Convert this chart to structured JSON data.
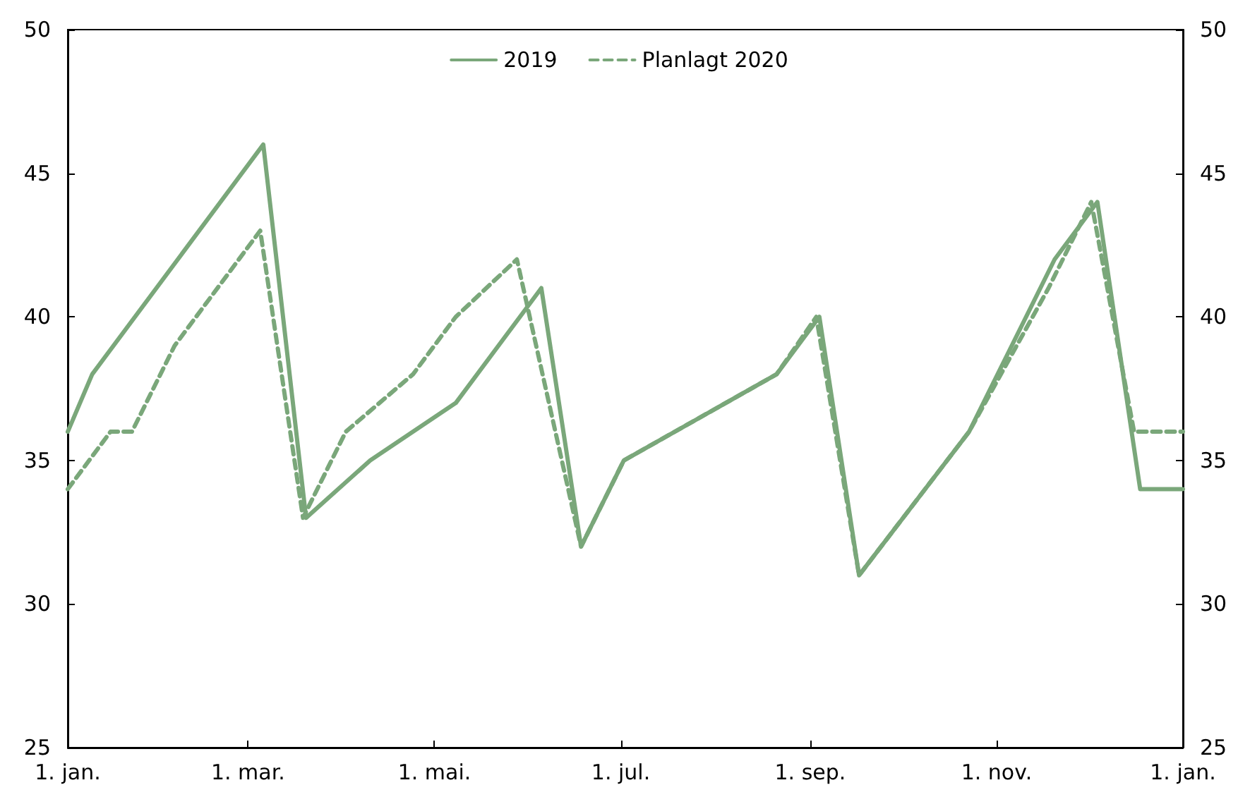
{
  "chart_data": {
    "type": "line",
    "xlim": [
      "2019-01-01",
      "2020-01-01"
    ],
    "xticks": [
      {
        "value": "2019-01-01",
        "label": "1. jan."
      },
      {
        "value": "2019-03-01",
        "label": "1. mar."
      },
      {
        "value": "2019-05-01",
        "label": "1. mai."
      },
      {
        "value": "2019-07-01",
        "label": "1. jul."
      },
      {
        "value": "2019-09-01",
        "label": "1. sep."
      },
      {
        "value": "2019-11-01",
        "label": "1. nov."
      },
      {
        "value": "2020-01-01",
        "label": "1. jan."
      }
    ],
    "ylim": [
      25,
      50
    ],
    "yticks": [
      25,
      30,
      35,
      40,
      45,
      50
    ],
    "y2lim": [
      25,
      50
    ],
    "y2ticks": [
      25,
      30,
      35,
      40,
      45,
      50
    ],
    "grid": false,
    "legend": "top",
    "marker": "none",
    "series": [
      {
        "name": "2019",
        "color": "#7aa77a",
        "line_style": "solid",
        "x": [
          "2019-01-01",
          "2019-01-09",
          "2019-03-06",
          "2019-03-20",
          "2019-04-10",
          "2019-05-08",
          "2019-06-05",
          "2019-06-18",
          "2019-07-02",
          "2019-08-21",
          "2019-09-04",
          "2019-09-17",
          "2019-10-23",
          "2019-11-20",
          "2019-12-04",
          "2019-12-18",
          "2020-01-01"
        ],
        "values": [
          36,
          38,
          46,
          33,
          35,
          37,
          41,
          32,
          35,
          38,
          40,
          31,
          36,
          42,
          44,
          34,
          34
        ]
      },
      {
        "name": "Planlagt 2020",
        "color": "#7aa77a",
        "line_style": "dashed",
        "x": [
          "2019-01-01",
          "2019-01-15",
          "2019-01-22",
          "2019-02-05",
          "2019-03-05",
          "2019-03-19",
          "2019-04-02",
          "2019-04-24",
          "2019-05-08",
          "2019-05-28",
          "2019-06-18",
          "2019-07-02",
          "2019-08-21",
          "2019-09-03",
          "2019-09-17",
          "2019-10-23",
          "2019-11-18",
          "2019-12-02",
          "2019-12-16",
          "2020-01-01"
        ],
        "values": [
          34,
          36,
          36,
          39,
          43,
          33,
          36,
          38,
          40,
          42,
          32,
          35,
          38,
          40,
          31,
          36,
          41,
          44,
          36,
          36
        ]
      }
    ]
  }
}
